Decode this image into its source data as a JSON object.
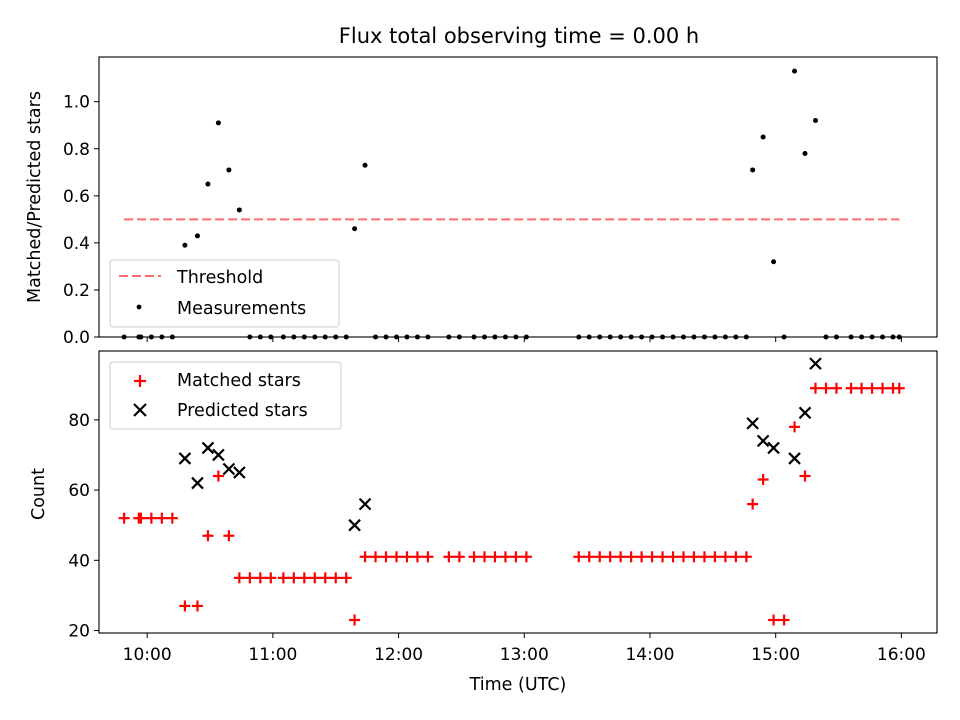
{
  "chart_data": [
    {
      "type": "scatter",
      "title": "Flux total observing time = 0.00 h",
      "xlabel": "",
      "ylabel": "Matched/Predicted stars",
      "ylim": [
        0.0,
        1.19
      ],
      "yticks": [
        "0.0",
        "0.2",
        "0.4",
        "0.6",
        "0.8",
        "1.0"
      ],
      "legend_position": "lower-left",
      "threshold": {
        "name": "Threshold",
        "value": 0.5,
        "x_range": [
          "09:49",
          "15:59"
        ],
        "color": "#ff6b6b",
        "style": "dashed"
      },
      "series": [
        {
          "name": "Measurements",
          "color": "#000000",
          "marker": "dot",
          "points": [
            [
              "09:49",
              0.0
            ],
            [
              "09:56",
              0.0
            ],
            [
              "09:57",
              0.0
            ],
            [
              "10:02",
              0.0
            ],
            [
              "10:07",
              0.0
            ],
            [
              "10:12",
              0.0
            ],
            [
              "10:18",
              0.39
            ],
            [
              "10:24",
              0.43
            ],
            [
              "10:29",
              0.65
            ],
            [
              "10:34",
              0.91
            ],
            [
              "10:39",
              0.71
            ],
            [
              "10:44",
              0.54
            ],
            [
              "10:49",
              0.0
            ],
            [
              "10:54",
              0.0
            ],
            [
              "10:59",
              0.0
            ],
            [
              "11:05",
              0.0
            ],
            [
              "11:10",
              0.0
            ],
            [
              "11:15",
              0.0
            ],
            [
              "11:20",
              0.0
            ],
            [
              "11:25",
              0.0
            ],
            [
              "11:30",
              0.0
            ],
            [
              "11:35",
              0.0
            ],
            [
              "11:39",
              0.46
            ],
            [
              "11:44",
              0.73
            ],
            [
              "11:49",
              0.0
            ],
            [
              "11:54",
              0.0
            ],
            [
              "11:59",
              0.0
            ],
            [
              "12:04",
              0.0
            ],
            [
              "12:09",
              0.0
            ],
            [
              "12:14",
              0.0
            ],
            [
              "12:24",
              0.0
            ],
            [
              "12:29",
              0.0
            ],
            [
              "12:36",
              0.0
            ],
            [
              "12:41",
              0.0
            ],
            [
              "12:46",
              0.0
            ],
            [
              "12:51",
              0.0
            ],
            [
              "12:56",
              0.0
            ],
            [
              "13:01",
              0.0
            ],
            [
              "13:26",
              0.0
            ],
            [
              "13:31",
              0.0
            ],
            [
              "13:36",
              0.0
            ],
            [
              "13:41",
              0.0
            ],
            [
              "13:46",
              0.0
            ],
            [
              "13:51",
              0.0
            ],
            [
              "13:56",
              0.0
            ],
            [
              "14:01",
              0.0
            ],
            [
              "14:06",
              0.0
            ],
            [
              "14:11",
              0.0
            ],
            [
              "14:16",
              0.0
            ],
            [
              "14:21",
              0.0
            ],
            [
              "14:26",
              0.0
            ],
            [
              "14:31",
              0.0
            ],
            [
              "14:36",
              0.0
            ],
            [
              "14:41",
              0.0
            ],
            [
              "14:46",
              0.0
            ],
            [
              "14:49",
              0.71
            ],
            [
              "14:54",
              0.85
            ],
            [
              "14:59",
              0.32
            ],
            [
              "15:04",
              0.0
            ],
            [
              "15:09",
              1.13
            ],
            [
              "15:14",
              0.78
            ],
            [
              "15:19",
              0.92
            ],
            [
              "15:24",
              0.0
            ],
            [
              "15:29",
              0.0
            ],
            [
              "15:36",
              0.0
            ],
            [
              "15:41",
              0.0
            ],
            [
              "15:46",
              0.0
            ],
            [
              "15:51",
              0.0
            ],
            [
              "15:56",
              0.0
            ],
            [
              "15:59",
              0.0
            ]
          ]
        }
      ]
    },
    {
      "type": "scatter",
      "title": "",
      "xlabel": "Time (UTC)",
      "ylabel": "Count",
      "xlim": [
        "09:37",
        "16:17"
      ],
      "xticks": [
        "10:00",
        "11:00",
        "12:00",
        "13:00",
        "14:00",
        "15:00",
        "16:00"
      ],
      "ylim": [
        19.3,
        99.6
      ],
      "yticks": [
        "20",
        "40",
        "60",
        "80"
      ],
      "legend_position": "upper-left",
      "series": [
        {
          "name": "Matched stars",
          "color": "#ff0000",
          "marker": "plus",
          "points": [
            [
              "09:49",
              52
            ],
            [
              "09:56",
              52
            ],
            [
              "09:57",
              52
            ],
            [
              "10:02",
              52
            ],
            [
              "10:07",
              52
            ],
            [
              "10:12",
              52
            ],
            [
              "10:18",
              27
            ],
            [
              "10:24",
              27
            ],
            [
              "10:29",
              47
            ],
            [
              "10:34",
              64
            ],
            [
              "10:39",
              47
            ],
            [
              "10:44",
              35
            ],
            [
              "10:49",
              35
            ],
            [
              "10:54",
              35
            ],
            [
              "10:59",
              35
            ],
            [
              "11:05",
              35
            ],
            [
              "11:10",
              35
            ],
            [
              "11:15",
              35
            ],
            [
              "11:20",
              35
            ],
            [
              "11:25",
              35
            ],
            [
              "11:30",
              35
            ],
            [
              "11:35",
              35
            ],
            [
              "11:39",
              23
            ],
            [
              "11:44",
              41
            ],
            [
              "11:49",
              41
            ],
            [
              "11:54",
              41
            ],
            [
              "11:59",
              41
            ],
            [
              "12:04",
              41
            ],
            [
              "12:09",
              41
            ],
            [
              "12:14",
              41
            ],
            [
              "12:24",
              41
            ],
            [
              "12:29",
              41
            ],
            [
              "12:36",
              41
            ],
            [
              "12:41",
              41
            ],
            [
              "12:46",
              41
            ],
            [
              "12:51",
              41
            ],
            [
              "12:56",
              41
            ],
            [
              "13:01",
              41
            ],
            [
              "13:26",
              41
            ],
            [
              "13:31",
              41
            ],
            [
              "13:36",
              41
            ],
            [
              "13:41",
              41
            ],
            [
              "13:46",
              41
            ],
            [
              "13:51",
              41
            ],
            [
              "13:56",
              41
            ],
            [
              "14:01",
              41
            ],
            [
              "14:06",
              41
            ],
            [
              "14:11",
              41
            ],
            [
              "14:16",
              41
            ],
            [
              "14:21",
              41
            ],
            [
              "14:26",
              41
            ],
            [
              "14:31",
              41
            ],
            [
              "14:36",
              41
            ],
            [
              "14:41",
              41
            ],
            [
              "14:46",
              41
            ],
            [
              "14:49",
              56
            ],
            [
              "14:54",
              63
            ],
            [
              "14:59",
              23
            ],
            [
              "15:04",
              23
            ],
            [
              "15:09",
              78
            ],
            [
              "15:14",
              64
            ],
            [
              "15:19",
              89
            ],
            [
              "15:24",
              89
            ],
            [
              "15:29",
              89
            ],
            [
              "15:36",
              89
            ],
            [
              "15:41",
              89
            ],
            [
              "15:46",
              89
            ],
            [
              "15:51",
              89
            ],
            [
              "15:56",
              89
            ],
            [
              "15:59",
              89
            ]
          ]
        },
        {
          "name": "Predicted stars",
          "color": "#000000",
          "marker": "x",
          "points": [
            [
              "10:18",
              69
            ],
            [
              "10:24",
              62
            ],
            [
              "10:29",
              72
            ],
            [
              "10:34",
              70
            ],
            [
              "10:39",
              66
            ],
            [
              "10:44",
              65
            ],
            [
              "11:39",
              50
            ],
            [
              "11:44",
              56
            ],
            [
              "14:49",
              79
            ],
            [
              "14:54",
              74
            ],
            [
              "14:59",
              72
            ],
            [
              "15:09",
              69
            ],
            [
              "15:14",
              82
            ],
            [
              "15:19",
              96
            ]
          ]
        }
      ]
    }
  ]
}
